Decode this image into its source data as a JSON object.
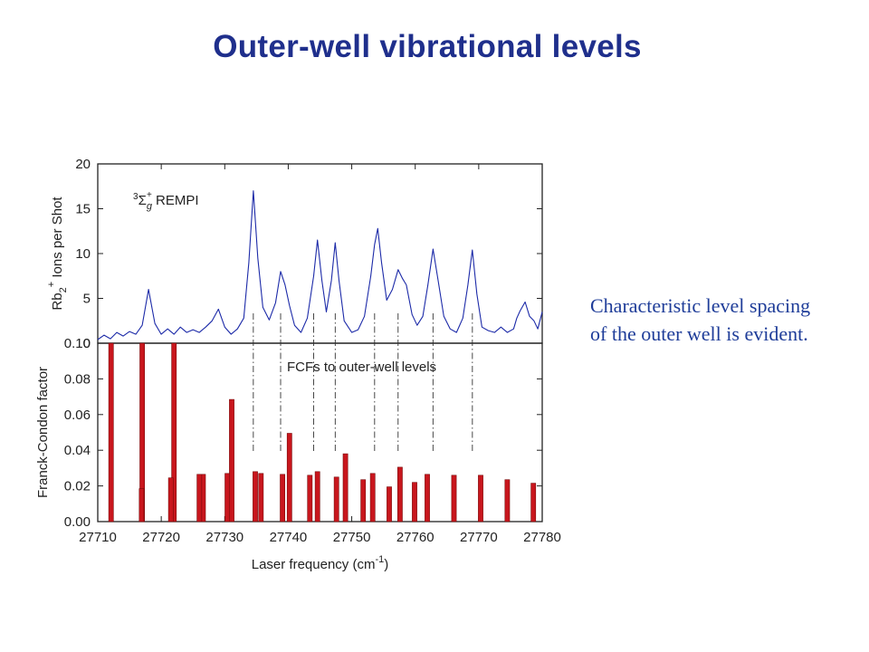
{
  "slide": {
    "title": "Outer-well vibrational levels",
    "note": "Characteristic level spacing of the outer well is evident."
  },
  "colors": {
    "title": "#1f2f8c",
    "trace": "#1c2aa8",
    "bars": "#c8161d",
    "note": "#1f3d99"
  },
  "chart_data": [
    {
      "type": "line",
      "panel": "top",
      "ylabel": "Rb2+ Ions per Shot",
      "ylabel_parts": {
        "base": "Rb",
        "sub": "2",
        "sup": "+",
        "rest": " Ions per Shot"
      },
      "annotation": {
        "sup_left": "3",
        "symbol": "Σ",
        "sub": "g",
        "sup": "+",
        "text": "REMPI"
      },
      "xlim": [
        27710,
        27780
      ],
      "ylim": [
        0,
        20
      ],
      "yticks": [
        0,
        5,
        10,
        15,
        20
      ],
      "series": [
        {
          "values": [
            [
              27710.0,
              0.4
            ],
            [
              27711.0,
              0.9
            ],
            [
              27712.0,
              0.5
            ],
            [
              27713.0,
              1.2
            ],
            [
              27714.0,
              0.8
            ],
            [
              27715.0,
              1.3
            ],
            [
              27716.0,
              1.0
            ],
            [
              27717.0,
              2.0
            ],
            [
              27718.0,
              6.0
            ],
            [
              27719.0,
              2.2
            ],
            [
              27720.0,
              1.0
            ],
            [
              27721.0,
              1.6
            ],
            [
              27722.0,
              1.0
            ],
            [
              27723.0,
              1.8
            ],
            [
              27724.0,
              1.2
            ],
            [
              27725.0,
              1.5
            ],
            [
              27726.0,
              1.2
            ],
            [
              27727.0,
              1.8
            ],
            [
              27728.0,
              2.5
            ],
            [
              27729.0,
              3.8
            ],
            [
              27730.0,
              1.8
            ],
            [
              27731.0,
              1.0
            ],
            [
              27732.0,
              1.6
            ],
            [
              27733.0,
              2.8
            ],
            [
              27733.8,
              9.0
            ],
            [
              27734.5,
              17.0
            ],
            [
              27735.2,
              9.5
            ],
            [
              27736.0,
              4.0
            ],
            [
              27737.0,
              2.6
            ],
            [
              27738.0,
              4.5
            ],
            [
              27738.8,
              8.0
            ],
            [
              27739.5,
              6.5
            ],
            [
              27740.2,
              4.2
            ],
            [
              27741.0,
              2.0
            ],
            [
              27742.0,
              1.2
            ],
            [
              27743.0,
              2.8
            ],
            [
              27744.0,
              7.5
            ],
            [
              27744.6,
              11.5
            ],
            [
              27745.3,
              7.0
            ],
            [
              27746.0,
              3.5
            ],
            [
              27746.8,
              7.0
            ],
            [
              27747.4,
              11.2
            ],
            [
              27748.0,
              7.0
            ],
            [
              27748.8,
              2.5
            ],
            [
              27750.0,
              1.2
            ],
            [
              27751.0,
              1.5
            ],
            [
              27752.0,
              3.0
            ],
            [
              27753.0,
              7.5
            ],
            [
              27753.6,
              11.0
            ],
            [
              27754.1,
              12.8
            ],
            [
              27754.7,
              9.0
            ],
            [
              27755.5,
              4.8
            ],
            [
              27756.4,
              6.0
            ],
            [
              27757.3,
              8.2
            ],
            [
              27758.0,
              7.2
            ],
            [
              27758.6,
              6.5
            ],
            [
              27759.5,
              3.2
            ],
            [
              27760.3,
              2.0
            ],
            [
              27761.2,
              3.0
            ],
            [
              27762.0,
              6.5
            ],
            [
              27762.8,
              10.5
            ],
            [
              27763.6,
              7.0
            ],
            [
              27764.5,
              3.0
            ],
            [
              27765.5,
              1.6
            ],
            [
              27766.5,
              1.2
            ],
            [
              27767.5,
              2.8
            ],
            [
              27768.3,
              6.5
            ],
            [
              27769.0,
              10.4
            ],
            [
              27769.7,
              5.5
            ],
            [
              27770.5,
              1.8
            ],
            [
              27771.5,
              1.4
            ],
            [
              27772.5,
              1.2
            ],
            [
              27773.5,
              1.8
            ],
            [
              27774.5,
              1.2
            ],
            [
              27775.5,
              1.6
            ],
            [
              27776.0,
              2.8
            ],
            [
              27776.5,
              3.6
            ],
            [
              27777.3,
              4.6
            ],
            [
              27778.0,
              3.0
            ],
            [
              27778.7,
              2.5
            ],
            [
              27779.3,
              1.6
            ],
            [
              27780.0,
              3.5
            ]
          ]
        }
      ]
    },
    {
      "type": "bar",
      "panel": "bottom",
      "annotation": "FCFs to outer-well levels",
      "xlabel": "Laser frequency (cm-1)",
      "xlabel_parts": {
        "base": "Laser frequency (cm",
        "sup": "-1",
        "rest": ")"
      },
      "ylabel": "Franck-Condon factor",
      "xlim": [
        27710,
        27780
      ],
      "ylim": [
        0,
        0.1
      ],
      "xticks": [
        27710,
        27720,
        27730,
        27740,
        27750,
        27760,
        27770,
        27780
      ],
      "yticks": [
        "0.00",
        "0.02",
        "0.04",
        "0.06",
        "0.08",
        "0.10"
      ],
      "x": [
        27712.1,
        27717.0,
        27722.0,
        27726.6,
        27731.1,
        27735.7,
        27740.2,
        27744.6,
        27749.0,
        27753.3,
        27757.6,
        27761.9,
        27766.1,
        27770.3,
        27774.5,
        27778.6,
        27716.9,
        27721.5,
        27726.0,
        27730.4,
        27734.8,
        27739.1,
        27743.4,
        27747.6,
        27751.8,
        27755.9,
        27759.9
      ],
      "values": [
        0.1,
        0.1,
        0.1,
        0.0265,
        0.0685,
        0.027,
        0.0495,
        0.028,
        0.038,
        0.027,
        0.0305,
        0.0265,
        0.026,
        0.026,
        0.0235,
        0.0215,
        0.0185,
        0.0245,
        0.0265,
        0.027,
        0.028,
        0.0265,
        0.026,
        0.025,
        0.0235,
        0.0195,
        0.022
      ],
      "correspondence_lines_x": [
        27734.5,
        27738.8,
        27744.0,
        27747.4,
        27753.6,
        27757.3,
        27762.8,
        27769.0
      ]
    }
  ]
}
